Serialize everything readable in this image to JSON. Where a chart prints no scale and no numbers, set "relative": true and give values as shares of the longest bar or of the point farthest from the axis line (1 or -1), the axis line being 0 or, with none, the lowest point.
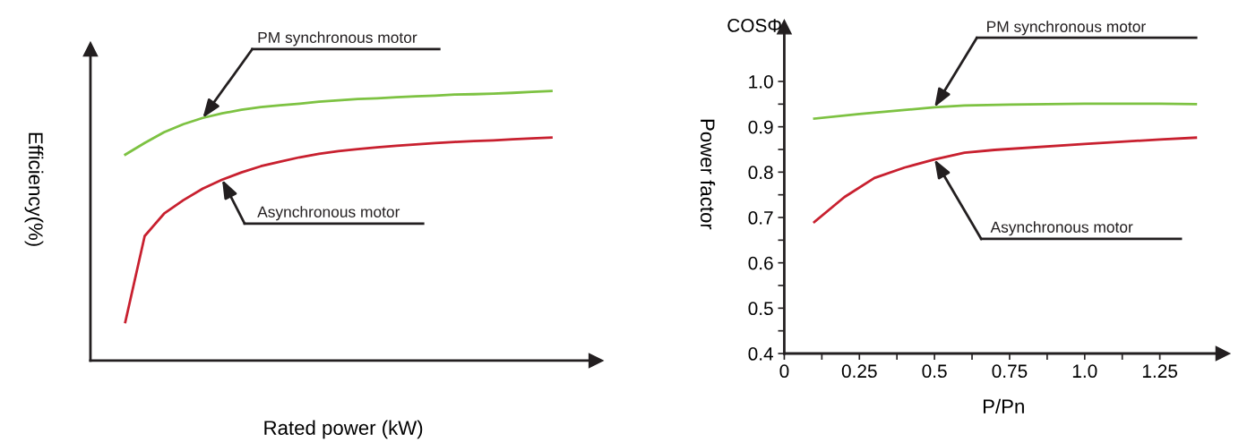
{
  "chart_data": [
    {
      "type": "line",
      "relative": true,
      "xlabel": "Rated power (kW)",
      "ylabel": "Efficiency(%)",
      "legend": false,
      "categories": [
        null,
        null,
        null,
        null,
        null,
        null,
        null,
        null,
        null,
        null,
        null,
        null,
        null,
        null,
        null,
        null,
        null,
        null,
        null,
        null,
        null,
        null,
        null
      ],
      "series": [
        {
          "name": "PM synchronous motor",
          "color": "#7dc242",
          "values": [
            0.764,
            0.807,
            0.847,
            0.877,
            0.9,
            0.917,
            0.93,
            0.94,
            0.947,
            0.953,
            0.96,
            0.965,
            0.97,
            0.973,
            0.977,
            0.98,
            0.983,
            0.987,
            0.988,
            0.99,
            0.993,
            0.997,
            1.0
          ]
        },
        {
          "name": "Asynchronous motor",
          "color": "#c8202f",
          "values": [
            0.143,
            0.462,
            0.545,
            0.595,
            0.638,
            0.671,
            0.698,
            0.721,
            0.738,
            0.754,
            0.767,
            0.777,
            0.784,
            0.791,
            0.797,
            0.802,
            0.807,
            0.811,
            0.814,
            0.817,
            0.821,
            0.824,
            0.827
          ]
        }
      ]
    },
    {
      "type": "line",
      "xlabel": "P/Pn",
      "ylabel": "Power factor",
      "legend": false,
      "xlim": [
        0,
        1.46
      ],
      "ylim": [
        0.4,
        1.12
      ],
      "xticks": [
        0,
        {
          "value": 0.125,
          "label": null
        },
        0.25,
        {
          "value": 0.375,
          "label": null
        },
        0.5,
        {
          "value": 0.625,
          "label": null
        },
        0.75,
        {
          "value": 0.875,
          "label": null
        },
        {
          "value": 1.0,
          "label": "1.0"
        },
        {
          "value": 1.125,
          "label": null
        },
        1.25
      ],
      "yticks": [
        0.4,
        {
          "value": 0.45,
          "label": null
        },
        0.5,
        {
          "value": 0.55,
          "label": null
        },
        0.6,
        {
          "value": 0.65,
          "label": null
        },
        0.7,
        {
          "value": 0.75,
          "label": null
        },
        0.8,
        {
          "value": 0.85,
          "label": null
        },
        0.9,
        {
          "value": 0.95,
          "label": null
        },
        {
          "value": 1.0,
          "label": "1.0"
        }
      ],
      "series": [
        {
          "name": "PM synchronous motor",
          "color": "#7dc242",
          "x": [
            0.1,
            0.25,
            0.4,
            0.5,
            0.6,
            0.75,
            1.0,
            1.25,
            1.37
          ],
          "values": [
            0.918,
            0.928,
            0.937,
            0.943,
            0.947,
            0.949,
            0.951,
            0.951,
            0.95
          ]
        },
        {
          "name": "Asynchronous motor",
          "color": "#c8202f",
          "x": [
            0.1,
            0.2,
            0.3,
            0.4,
            0.5,
            0.6,
            0.7,
            1.0,
            1.25,
            1.37
          ],
          "values": [
            0.69,
            0.745,
            0.787,
            0.81,
            0.828,
            0.843,
            0.849,
            0.862,
            0.872,
            0.876
          ]
        }
      ],
      "annotations": [
        "COSΦ"
      ]
    }
  ]
}
